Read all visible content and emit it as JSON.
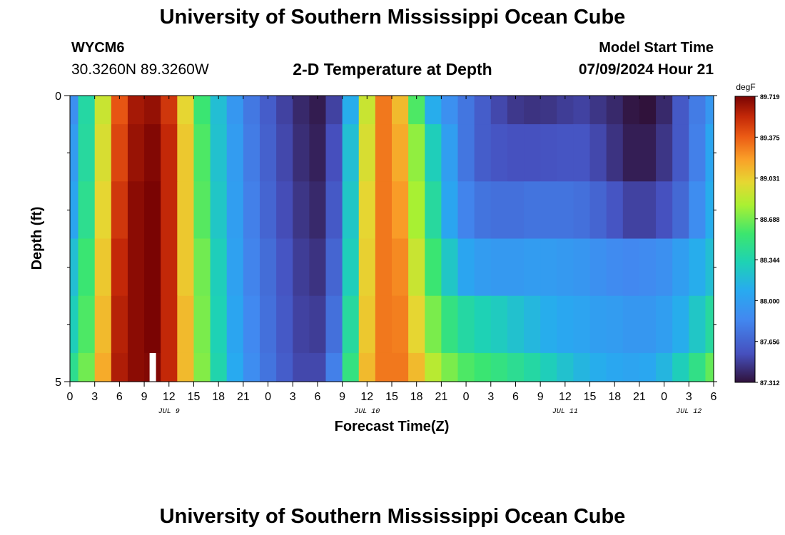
{
  "header": {
    "title": "University of Southern Mississippi Ocean Cube",
    "station_id": "WYCM6",
    "coordinates": "30.3260N  89.3260W",
    "subtitle": "2-D Temperature at Depth",
    "model_start_label": "Model Start Time",
    "model_start_value": "07/09/2024 Hour 21"
  },
  "footer": {
    "title": "University of Southern Mississippi Ocean Cube"
  },
  "colors": {
    "background": "#ffffff",
    "text": "#000000",
    "marker": "#ffffff"
  },
  "chart_data": {
    "type": "heatmap",
    "title": "2-D Temperature at Depth",
    "xlabel": "Forecast Time(Z)",
    "ylabel": "Depth (ft)",
    "x_range_hours": [
      0,
      78
    ],
    "x_tick_labels": [
      "0",
      "3",
      "6",
      "9",
      "12",
      "15",
      "18",
      "21",
      "0",
      "3",
      "6",
      "9",
      "12",
      "15",
      "18",
      "21",
      "0",
      "3",
      "6",
      "9",
      "12",
      "15",
      "18",
      "21",
      "0",
      "3",
      "6"
    ],
    "date_labels": [
      {
        "label": "JUL 9",
        "hour": 12
      },
      {
        "label": "JUL 10",
        "hour": 36
      },
      {
        "label": "JUL 11",
        "hour": 60
      },
      {
        "label": "JUL 12",
        "hour": 75
      }
    ],
    "y_range_ft": [
      0,
      5
    ],
    "y_tick_labels": [
      "0",
      "5"
    ],
    "y_minor_ticks": [
      1,
      2,
      3,
      4
    ],
    "depth_layers_ft": [
      0,
      1,
      2,
      3,
      4,
      5
    ],
    "time_hours": [
      0,
      2,
      4,
      6,
      8,
      10,
      12,
      14,
      16,
      18,
      20,
      22,
      24,
      26,
      28,
      30,
      32,
      34,
      36,
      38,
      40,
      42,
      44,
      46,
      48,
      50,
      52,
      54,
      56,
      58,
      60,
      62,
      64,
      66,
      68,
      70,
      72,
      74,
      76,
      78
    ],
    "temperature_degF": [
      [
        87.9,
        88.38,
        88.9,
        89.4,
        89.62,
        89.66,
        89.5,
        89.0,
        88.55,
        88.2,
        87.95,
        87.76,
        87.62,
        87.5,
        87.4,
        87.35,
        87.5,
        88.1,
        88.9,
        89.3,
        89.1,
        88.6,
        88.1,
        87.9,
        87.75,
        87.62,
        87.52,
        87.46,
        87.44,
        87.45,
        87.48,
        87.5,
        87.45,
        87.4,
        87.33,
        87.3,
        87.4,
        87.6,
        87.78,
        87.95
      ],
      [
        87.98,
        88.4,
        88.95,
        89.45,
        89.65,
        89.7,
        89.55,
        89.05,
        88.6,
        88.22,
        87.98,
        87.78,
        87.64,
        87.52,
        87.42,
        87.37,
        87.55,
        88.2,
        88.95,
        89.3,
        89.15,
        88.75,
        88.3,
        88.0,
        87.75,
        87.62,
        87.58,
        87.56,
        87.56,
        87.57,
        87.58,
        87.58,
        87.52,
        87.44,
        87.36,
        87.36,
        87.45,
        87.6,
        87.8,
        88.05
      ],
      [
        88.05,
        88.45,
        89.0,
        89.5,
        89.68,
        89.72,
        89.55,
        89.05,
        88.62,
        88.25,
        88.0,
        87.8,
        87.66,
        87.54,
        87.45,
        87.4,
        87.6,
        88.25,
        89.0,
        89.3,
        89.2,
        88.8,
        88.4,
        88.05,
        87.82,
        87.74,
        87.72,
        87.72,
        87.74,
        87.74,
        87.74,
        87.72,
        87.66,
        87.58,
        87.5,
        87.5,
        87.56,
        87.68,
        87.88,
        88.1
      ],
      [
        88.2,
        88.55,
        89.05,
        89.55,
        89.68,
        89.72,
        89.55,
        89.05,
        88.68,
        88.3,
        88.02,
        87.82,
        87.7,
        87.58,
        87.48,
        87.44,
        87.66,
        88.3,
        89.02,
        89.3,
        89.25,
        88.9,
        88.55,
        88.25,
        88.05,
        87.98,
        87.96,
        87.96,
        87.98,
        87.98,
        87.96,
        87.94,
        87.9,
        87.86,
        87.84,
        87.86,
        87.9,
        88.0,
        88.1,
        88.2
      ],
      [
        88.3,
        88.6,
        89.1,
        89.58,
        89.68,
        89.72,
        89.55,
        89.1,
        88.7,
        88.32,
        88.05,
        87.85,
        87.72,
        87.6,
        87.5,
        87.48,
        87.72,
        88.4,
        89.05,
        89.3,
        89.28,
        89.0,
        88.7,
        88.5,
        88.38,
        88.32,
        88.28,
        88.22,
        88.16,
        88.1,
        88.06,
        88.04,
        88.0,
        87.98,
        87.95,
        87.95,
        88.0,
        88.1,
        88.25,
        88.4
      ],
      [
        88.45,
        88.68,
        89.15,
        89.6,
        89.68,
        89.7,
        89.55,
        89.1,
        88.72,
        88.35,
        88.08,
        87.88,
        87.74,
        87.62,
        87.52,
        87.52,
        87.8,
        88.5,
        89.1,
        89.3,
        89.3,
        89.1,
        88.85,
        88.7,
        88.6,
        88.55,
        88.5,
        88.44,
        88.38,
        88.3,
        88.22,
        88.15,
        88.1,
        88.06,
        88.04,
        88.06,
        88.15,
        88.3,
        88.48,
        88.65
      ]
    ],
    "marker": {
      "hour": 10,
      "depth_ft": 5,
      "description": "current-time marker"
    },
    "colorbar": {
      "unit": "degF",
      "min": 87.312,
      "max": 89.719,
      "tick_labels": [
        "89.719",
        "89.375",
        "89.031",
        "88.688",
        "88.344",
        "88.000",
        "87.656",
        "87.312"
      ]
    }
  }
}
